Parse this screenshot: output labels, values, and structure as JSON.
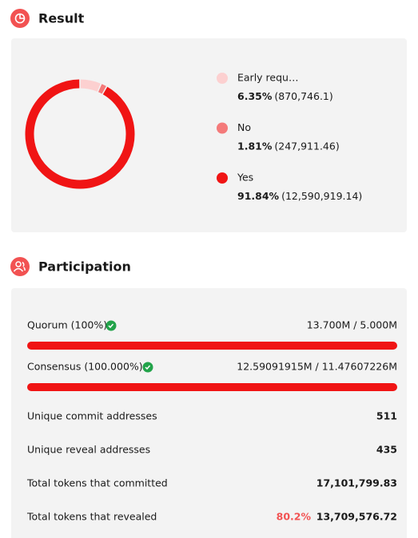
{
  "result": {
    "title": "Result"
  },
  "chart_data": {
    "type": "pie",
    "categories": [
      "Early requ…",
      "No",
      "Yes"
    ],
    "values": [
      6.35,
      1.81,
      91.84
    ],
    "value_labels": [
      "6.35%",
      "1.81%",
      "91.84%"
    ],
    "amounts": [
      "(870,746.1)",
      "(247,911.46)",
      "(12,590,919.14)"
    ],
    "colors": [
      "#fcd0d0",
      "#f47a7a",
      "#f01414"
    ]
  },
  "participation": {
    "title": "Participation",
    "quorum": {
      "label": "Quorum (100%)",
      "value": "13.700M / 5.000M"
    },
    "consensus": {
      "label": "Consensus (100.000%)",
      "value": "12.59091915M / 11.47607226M"
    },
    "rows": [
      {
        "label": "Unique commit addresses",
        "value": "511"
      },
      {
        "label": "Unique reveal addresses",
        "value": "435"
      },
      {
        "label": "Total tokens that committed",
        "value": "17,101,799.83"
      },
      {
        "label": "Total tokens that revealed",
        "percent": "80.2%",
        "value": "13,709,576.72"
      }
    ]
  }
}
